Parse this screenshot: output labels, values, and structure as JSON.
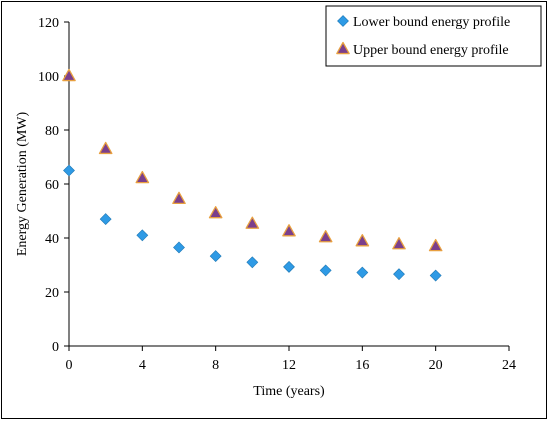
{
  "chart_data": {
    "type": "scatter",
    "xlabel": "Time (years)",
    "ylabel": "Energy Generation (MW)",
    "xlim": [
      0,
      24
    ],
    "ylim": [
      0,
      120
    ],
    "xticks": [
      0,
      4,
      8,
      12,
      16,
      20,
      24
    ],
    "yticks": [
      0,
      20,
      40,
      60,
      80,
      100,
      120
    ],
    "grid": false,
    "legend_position": "top-right",
    "series": [
      {
        "name": "Lower bound energy profile",
        "marker": "diamond",
        "color": "#2E9AE5",
        "x": [
          0,
          2,
          4,
          6,
          8,
          10,
          12,
          14,
          16,
          18,
          20
        ],
        "y": [
          65,
          47,
          41,
          36.5,
          33.3,
          31,
          29.3,
          28,
          27.2,
          26.6,
          26.1
        ]
      },
      {
        "name": "Upper bound energy profile",
        "marker": "triangle",
        "color": "#7B3F8C",
        "edge_color": "#E8A040",
        "x": [
          0,
          2,
          4,
          6,
          8,
          10,
          12,
          14,
          16,
          18,
          20
        ],
        "y": [
          100,
          73,
          62.2,
          54.5,
          49.2,
          45.3,
          42.5,
          40.3,
          38.8,
          37.7,
          37
        ]
      }
    ]
  }
}
